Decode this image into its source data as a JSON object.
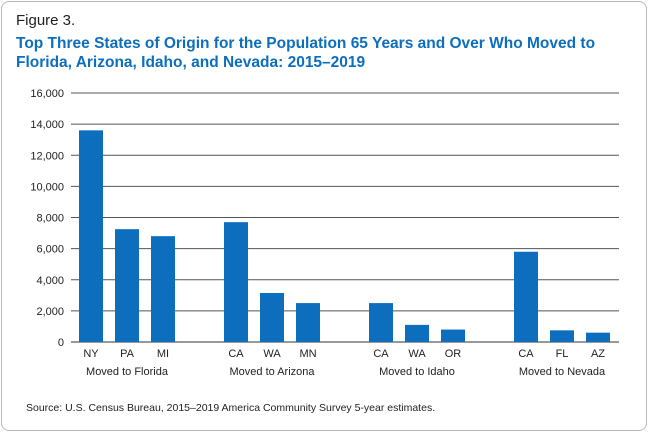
{
  "figure_label": "Figure 3.",
  "title": "Top Three States of Origin for the Population 65 Years and Over Who Moved to Florida, Arizona, Idaho, and Nevada: 2015–2019",
  "source": "Source: U.S. Census Bureau, 2015–2019 America Community Survey 5-year estimates.",
  "colors": {
    "bar": "#0d6ebd",
    "grid": "#555555",
    "title": "#0d6ebd"
  },
  "chart_data": {
    "type": "bar",
    "title": "Top Three States of Origin for the Population 65 Years and Over Who Moved to Florida, Arizona, Idaho, and Nevada: 2015–2019",
    "xlabel": "",
    "ylabel": "",
    "ylim": [
      0,
      16000
    ],
    "yticks": [
      0,
      2000,
      4000,
      6000,
      8000,
      10000,
      12000,
      14000,
      16000
    ],
    "ytick_labels": [
      "0",
      "2,000",
      "4,000",
      "6,000",
      "8,000",
      "10,000",
      "12,000",
      "14,000",
      "16,000"
    ],
    "grid": true,
    "groups": [
      {
        "label": "Moved to Florida",
        "categories": [
          "NY",
          "PA",
          "MI"
        ],
        "values": [
          13600,
          7250,
          6800
        ]
      },
      {
        "label": "Moved to Arizona",
        "categories": [
          "CA",
          "WA",
          "MN"
        ],
        "values": [
          7700,
          3150,
          2500
        ]
      },
      {
        "label": "Moved to Idaho",
        "categories": [
          "CA",
          "WA",
          "OR"
        ],
        "values": [
          2500,
          1100,
          800
        ]
      },
      {
        "label": "Moved to Nevada",
        "categories": [
          "CA",
          "FL",
          "AZ"
        ],
        "values": [
          5800,
          750,
          600
        ]
      }
    ]
  }
}
